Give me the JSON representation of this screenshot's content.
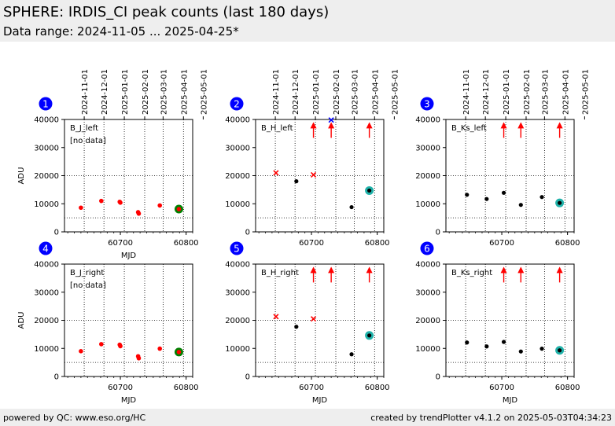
{
  "header": {
    "title": "SPHERE: IRDIS_CI peak counts (last 180 days)",
    "subtitle": "Data range: 2024-11-05 ... 2025-04-25*"
  },
  "footer": {
    "left": "powered by QC: www.eso.org/HC",
    "right": "created by trendPlotter v4.1.2 on 2025-05-03T04:34:23"
  },
  "colors": {
    "normal": "#000000",
    "outlier": "#ff0000",
    "latest_ok": "#008000",
    "latest_ring": "#20b2aa",
    "badge": "#0000ff",
    "header_bg": "#eeeeee"
  },
  "chart_data": [
    {
      "type": "scatter",
      "id": "1",
      "label": "B_J_left",
      "note": "[no data]",
      "xlabel": "MJD",
      "ylabel": "ADU",
      "xlim": [
        60615,
        60810
      ],
      "ylim": [
        0,
        40000
      ],
      "xticks": [
        60700,
        60800
      ],
      "xtick_labels": [
        "60700",
        "60800"
      ],
      "yticks": [
        0,
        10000,
        20000,
        30000,
        40000
      ],
      "ytick_labels": [
        "0",
        "10000",
        "20000",
        "30000",
        "40000"
      ],
      "date_ticks": [
        {
          "x": 60645,
          "label": "2024-11-01"
        },
        {
          "x": 60675,
          "label": "2024-12-01"
        },
        {
          "x": 60706,
          "label": "2025-01-01"
        },
        {
          "x": 60737,
          "label": "2025-02-01"
        },
        {
          "x": 60765,
          "label": "2025-03-01"
        },
        {
          "x": 60796,
          "label": "2025-04-01"
        },
        {
          "x": 60826,
          "label": "2025-05-01"
        }
      ],
      "ref_lines": [
        5000,
        20000
      ],
      "points": [
        {
          "x": 60640,
          "y": 8600,
          "style": "outlier-dot"
        },
        {
          "x": 60671,
          "y": 11000,
          "style": "outlier-dot"
        },
        {
          "x": 60699,
          "y": 10700,
          "style": "outlier-dot"
        },
        {
          "x": 60700,
          "y": 10400,
          "style": "outlier-dot"
        },
        {
          "x": 60727,
          "y": 7000,
          "style": "outlier-dot"
        },
        {
          "x": 60728,
          "y": 6500,
          "style": "outlier-dot"
        },
        {
          "x": 60760,
          "y": 9400,
          "style": "outlier-dot"
        },
        {
          "x": 60789,
          "y": 8100,
          "style": "latest-ok"
        }
      ]
    },
    {
      "type": "scatter",
      "id": "2",
      "label": "B_H_left",
      "note": "",
      "xlabel": "",
      "ylabel": "",
      "xlim": [
        60615,
        60810
      ],
      "ylim": [
        0,
        40000
      ],
      "xticks": [
        60700,
        60800
      ],
      "xtick_labels": [
        "60700",
        "60800"
      ],
      "yticks": [
        0,
        10000,
        20000,
        30000,
        40000
      ],
      "ytick_labels": [
        "0",
        "10000",
        "20000",
        "30000",
        "40000"
      ],
      "date_ticks": [
        {
          "x": 60645,
          "label": "2024-11-01"
        },
        {
          "x": 60675,
          "label": "2024-12-01"
        },
        {
          "x": 60706,
          "label": "2025-01-01"
        },
        {
          "x": 60737,
          "label": "2025-02-01"
        },
        {
          "x": 60765,
          "label": "2025-03-01"
        },
        {
          "x": 60796,
          "label": "2025-04-01"
        },
        {
          "x": 60826,
          "label": "2025-05-01"
        }
      ],
      "ref_lines": [
        5000,
        20000
      ],
      "points": [
        {
          "x": 60646,
          "y": 21000,
          "style": "outlier-x"
        },
        {
          "x": 60677,
          "y": 18000,
          "style": "normal-dot"
        },
        {
          "x": 60703,
          "y": 20300,
          "style": "outlier-x"
        },
        {
          "x": 60703,
          "y": 38500,
          "style": "up-arrow"
        },
        {
          "x": 60730,
          "y": 38500,
          "style": "up-arrow"
        },
        {
          "x": 60730,
          "y": 39800,
          "style": "blue-x"
        },
        {
          "x": 60761,
          "y": 8800,
          "style": "normal-dot"
        },
        {
          "x": 60788,
          "y": 38500,
          "style": "up-arrow"
        },
        {
          "x": 60788,
          "y": 14700,
          "style": "latest-ring"
        }
      ]
    },
    {
      "type": "scatter",
      "id": "3",
      "label": "B_Ks_left",
      "note": "",
      "xlabel": "",
      "ylabel": "",
      "xlim": [
        60615,
        60810
      ],
      "ylim": [
        0,
        40000
      ],
      "xticks": [
        60700,
        60800
      ],
      "xtick_labels": [
        "60700",
        "60800"
      ],
      "yticks": [
        0,
        10000,
        20000,
        30000,
        40000
      ],
      "ytick_labels": [
        "0",
        "10000",
        "20000",
        "30000",
        "40000"
      ],
      "date_ticks": [
        {
          "x": 60645,
          "label": "2024-11-01"
        },
        {
          "x": 60675,
          "label": "2024-12-01"
        },
        {
          "x": 60706,
          "label": "2025-01-01"
        },
        {
          "x": 60737,
          "label": "2025-02-01"
        },
        {
          "x": 60765,
          "label": "2025-03-01"
        },
        {
          "x": 60796,
          "label": "2025-04-01"
        },
        {
          "x": 60826,
          "label": "2025-05-01"
        }
      ],
      "ref_lines": [
        5000,
        20000
      ],
      "points": [
        {
          "x": 60647,
          "y": 13200,
          "style": "normal-dot"
        },
        {
          "x": 60677,
          "y": 11700,
          "style": "normal-dot"
        },
        {
          "x": 60703,
          "y": 13900,
          "style": "normal-dot"
        },
        {
          "x": 60703,
          "y": 38500,
          "style": "up-arrow"
        },
        {
          "x": 60729,
          "y": 38500,
          "style": "up-arrow"
        },
        {
          "x": 60729,
          "y": 9600,
          "style": "normal-dot"
        },
        {
          "x": 60761,
          "y": 12400,
          "style": "normal-dot"
        },
        {
          "x": 60788,
          "y": 38500,
          "style": "up-arrow"
        },
        {
          "x": 60788,
          "y": 10300,
          "style": "latest-ring"
        }
      ]
    },
    {
      "type": "scatter",
      "id": "4",
      "label": "B_J_right",
      "note": "[no data]",
      "xlabel": "MJD",
      "ylabel": "ADU",
      "xlim": [
        60615,
        60810
      ],
      "ylim": [
        0,
        40000
      ],
      "xticks": [
        60700,
        60800
      ],
      "xtick_labels": [
        "60700",
        "60800"
      ],
      "yticks": [
        0,
        10000,
        20000,
        30000,
        40000
      ],
      "ytick_labels": [
        "0",
        "10000",
        "20000",
        "30000",
        "40000"
      ],
      "date_ticks": [],
      "ref_lines": [
        5000,
        20000
      ],
      "points": [
        {
          "x": 60640,
          "y": 9000,
          "style": "outlier-dot"
        },
        {
          "x": 60671,
          "y": 11500,
          "style": "outlier-dot"
        },
        {
          "x": 60699,
          "y": 11300,
          "style": "outlier-dot"
        },
        {
          "x": 60700,
          "y": 10800,
          "style": "outlier-dot"
        },
        {
          "x": 60727,
          "y": 7200,
          "style": "outlier-dot"
        },
        {
          "x": 60728,
          "y": 6500,
          "style": "outlier-dot"
        },
        {
          "x": 60760,
          "y": 9900,
          "style": "outlier-dot"
        },
        {
          "x": 60789,
          "y": 8700,
          "style": "latest-ok"
        }
      ]
    },
    {
      "type": "scatter",
      "id": "5",
      "label": "B_H_right",
      "note": "",
      "xlabel": "MJD",
      "ylabel": "",
      "xlim": [
        60615,
        60810
      ],
      "ylim": [
        0,
        40000
      ],
      "xticks": [
        60700,
        60800
      ],
      "xtick_labels": [
        "60700",
        "60800"
      ],
      "yticks": [
        0,
        10000,
        20000,
        30000,
        40000
      ],
      "ytick_labels": [
        "0",
        "10000",
        "20000",
        "30000",
        "40000"
      ],
      "date_ticks": [],
      "ref_lines": [
        5000,
        20000
      ],
      "points": [
        {
          "x": 60646,
          "y": 21300,
          "style": "outlier-x"
        },
        {
          "x": 60677,
          "y": 17700,
          "style": "normal-dot"
        },
        {
          "x": 60703,
          "y": 20500,
          "style": "outlier-x"
        },
        {
          "x": 60703,
          "y": 38500,
          "style": "up-arrow"
        },
        {
          "x": 60730,
          "y": 38500,
          "style": "up-arrow"
        },
        {
          "x": 60761,
          "y": 7900,
          "style": "normal-dot"
        },
        {
          "x": 60788,
          "y": 38500,
          "style": "up-arrow"
        },
        {
          "x": 60788,
          "y": 14600,
          "style": "latest-ring"
        }
      ]
    },
    {
      "type": "scatter",
      "id": "6",
      "label": "B_Ks_right",
      "note": "",
      "xlabel": "MJD",
      "ylabel": "",
      "xlim": [
        60615,
        60810
      ],
      "ylim": [
        0,
        40000
      ],
      "xticks": [
        60700,
        60800
      ],
      "xtick_labels": [
        "60700",
        "60800"
      ],
      "yticks": [
        0,
        10000,
        20000,
        30000,
        40000
      ],
      "ytick_labels": [
        "0",
        "10000",
        "20000",
        "30000",
        "40000"
      ],
      "date_ticks": [],
      "ref_lines": [
        5000,
        20000
      ],
      "points": [
        {
          "x": 60647,
          "y": 12100,
          "style": "normal-dot"
        },
        {
          "x": 60677,
          "y": 10700,
          "style": "normal-dot"
        },
        {
          "x": 60703,
          "y": 12300,
          "style": "normal-dot"
        },
        {
          "x": 60703,
          "y": 38500,
          "style": "up-arrow"
        },
        {
          "x": 60729,
          "y": 38500,
          "style": "up-arrow"
        },
        {
          "x": 60729,
          "y": 8900,
          "style": "normal-dot"
        },
        {
          "x": 60761,
          "y": 9900,
          "style": "normal-dot"
        },
        {
          "x": 60788,
          "y": 38500,
          "style": "up-arrow"
        },
        {
          "x": 60788,
          "y": 9300,
          "style": "latest-ring"
        }
      ]
    }
  ]
}
